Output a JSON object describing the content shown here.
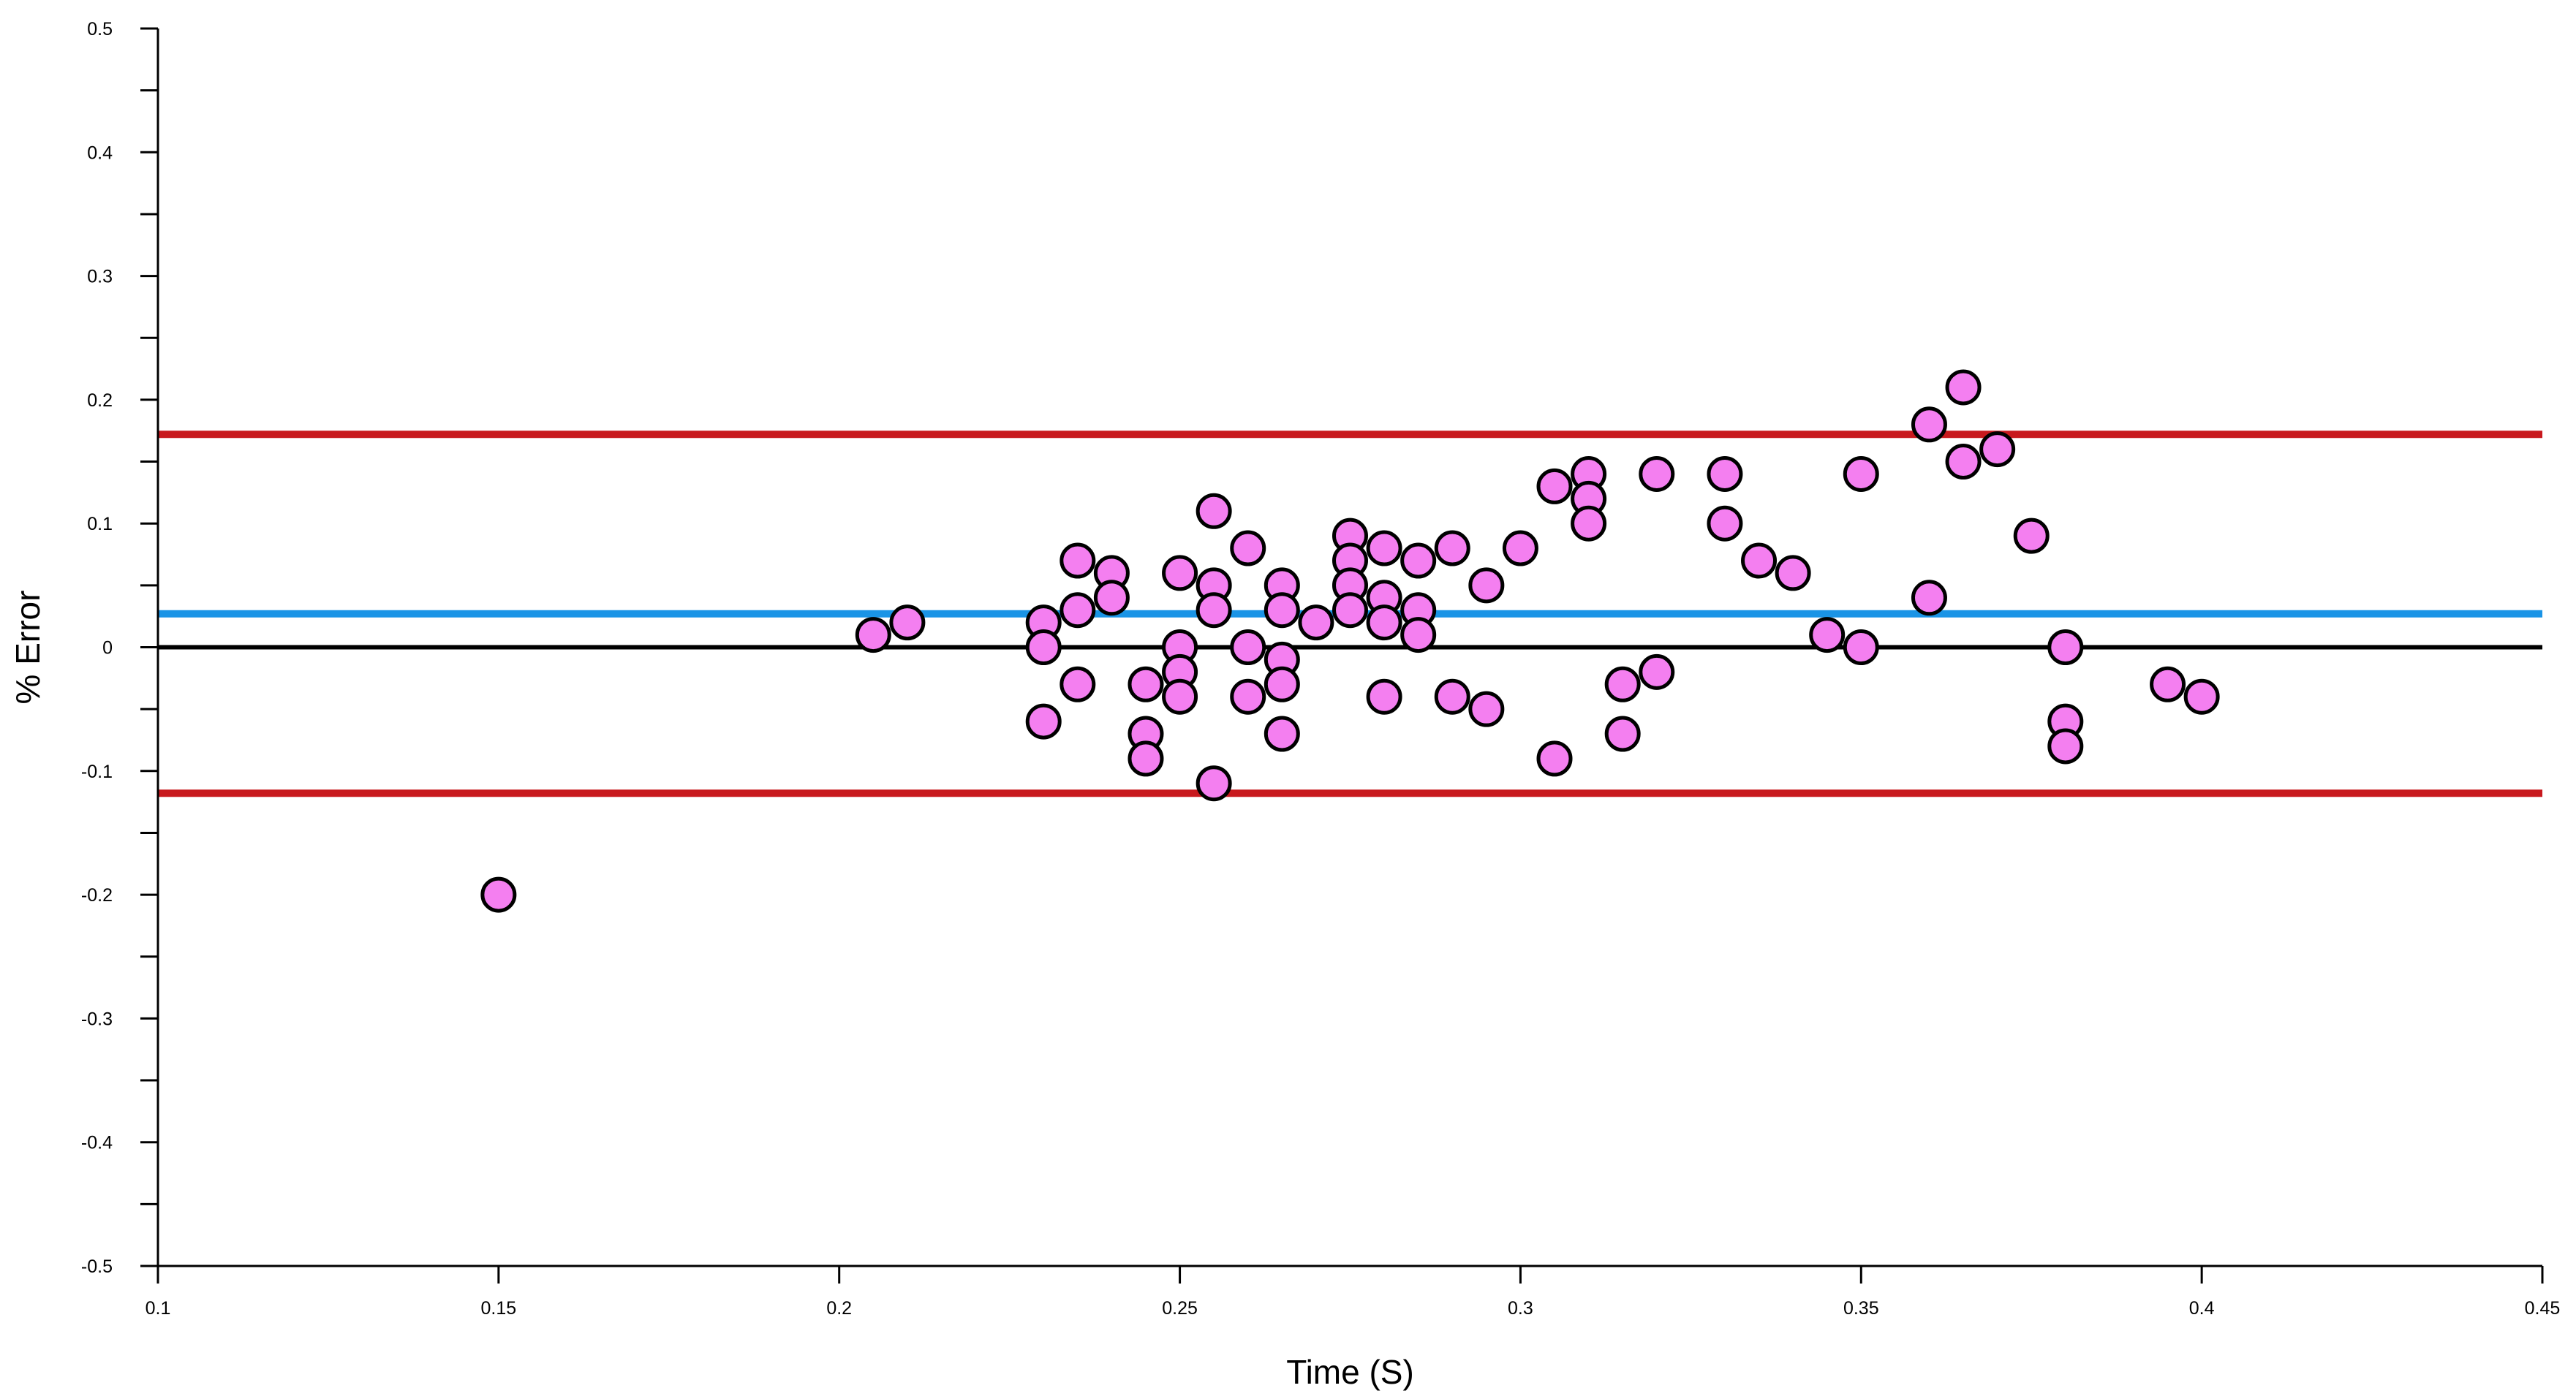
{
  "chart_data": {
    "type": "scatter",
    "title": "",
    "xlabel": "Time (S)",
    "ylabel": "% Error",
    "xlim": [
      0.1,
      0.45
    ],
    "ylim": [
      -0.5,
      0.5
    ],
    "x_major_ticks": [
      "0.1",
      "0.15",
      "0.2",
      "0.25",
      "0.3",
      "0.35",
      "0.4",
      "0.45"
    ],
    "y_major_ticks": [
      "-0.5",
      "-0.4",
      "-0.3",
      "-0.2",
      "-0.1",
      "0",
      "0.1",
      "0.2",
      "0.3",
      "0.4",
      "0.5"
    ],
    "y_minor_step": 0.05,
    "grid": false,
    "legend": "none",
    "reference_lines": [
      {
        "kind": "upper-limit",
        "y": 0.172,
        "color": "#c8191e"
      },
      {
        "kind": "mean-bias",
        "y": 0.027,
        "color": "#1a94e6"
      },
      {
        "kind": "zero",
        "y": 0.0,
        "color": "#000000"
      },
      {
        "kind": "lower-limit",
        "y": -0.118,
        "color": "#c8191e"
      }
    ],
    "marker": {
      "fill": "#f47ff0",
      "stroke": "#000000"
    },
    "points": [
      [
        0.15,
        -0.2
      ],
      [
        0.205,
        0.01
      ],
      [
        0.21,
        0.02
      ],
      [
        0.23,
        0.02
      ],
      [
        0.23,
        0.0
      ],
      [
        0.23,
        -0.06
      ],
      [
        0.235,
        0.07
      ],
      [
        0.235,
        0.03
      ],
      [
        0.235,
        -0.03
      ],
      [
        0.24,
        0.06
      ],
      [
        0.24,
        0.04
      ],
      [
        0.245,
        -0.03
      ],
      [
        0.245,
        -0.07
      ],
      [
        0.245,
        -0.09
      ],
      [
        0.25,
        0.06
      ],
      [
        0.25,
        0.0
      ],
      [
        0.25,
        -0.02
      ],
      [
        0.25,
        -0.04
      ],
      [
        0.255,
        0.11
      ],
      [
        0.255,
        0.05
      ],
      [
        0.255,
        0.03
      ],
      [
        0.255,
        -0.11
      ],
      [
        0.26,
        0.08
      ],
      [
        0.26,
        0.0
      ],
      [
        0.26,
        -0.04
      ],
      [
        0.265,
        0.05
      ],
      [
        0.265,
        0.03
      ],
      [
        0.265,
        -0.01
      ],
      [
        0.265,
        -0.03
      ],
      [
        0.265,
        -0.07
      ],
      [
        0.27,
        0.02
      ],
      [
        0.275,
        0.09
      ],
      [
        0.275,
        0.07
      ],
      [
        0.275,
        0.05
      ],
      [
        0.275,
        0.03
      ],
      [
        0.28,
        0.08
      ],
      [
        0.28,
        0.04
      ],
      [
        0.28,
        0.02
      ],
      [
        0.28,
        -0.04
      ],
      [
        0.285,
        0.07
      ],
      [
        0.285,
        0.03
      ],
      [
        0.285,
        0.01
      ],
      [
        0.29,
        0.08
      ],
      [
        0.29,
        -0.04
      ],
      [
        0.295,
        0.05
      ],
      [
        0.295,
        -0.05
      ],
      [
        0.3,
        0.08
      ],
      [
        0.305,
        0.13
      ],
      [
        0.305,
        -0.09
      ],
      [
        0.31,
        0.14
      ],
      [
        0.31,
        0.12
      ],
      [
        0.31,
        0.1
      ],
      [
        0.315,
        -0.03
      ],
      [
        0.315,
        -0.07
      ],
      [
        0.32,
        0.14
      ],
      [
        0.32,
        -0.02
      ],
      [
        0.33,
        0.14
      ],
      [
        0.33,
        0.1
      ],
      [
        0.335,
        0.07
      ],
      [
        0.34,
        0.06
      ],
      [
        0.345,
        0.01
      ],
      [
        0.35,
        0.14
      ],
      [
        0.35,
        0.0
      ],
      [
        0.36,
        0.18
      ],
      [
        0.36,
        0.04
      ],
      [
        0.365,
        0.21
      ],
      [
        0.365,
        0.15
      ],
      [
        0.37,
        0.16
      ],
      [
        0.375,
        0.09
      ],
      [
        0.38,
        0.0
      ],
      [
        0.38,
        -0.06
      ],
      [
        0.38,
        -0.08
      ],
      [
        0.395,
        -0.03
      ],
      [
        0.4,
        -0.04
      ]
    ]
  }
}
